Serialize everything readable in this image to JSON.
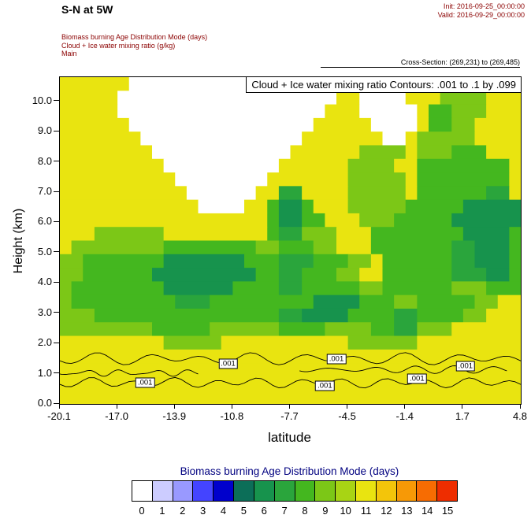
{
  "header": {
    "title": "S-N at 5W",
    "init_label": "Init: 2016-09-25_00:00:00",
    "valid_label": "Valid: 2016-09-29_00:00:00",
    "field_lines": [
      "Biomass burning Age Distribution Mode   (days)",
      "Cloud + Ice water mixing ratio   (g/kg)",
      "Main"
    ],
    "cross_section": "Cross-Section: (269,231) to (269,485)"
  },
  "chart_data": {
    "type": "heatmap",
    "title": "Cloud + Ice water mixing ratio Contours: .001 to .1 by .099",
    "xlabel": "latitude",
    "ylabel": "Height (km)",
    "x_ticks": [
      "-20.1",
      "-17.0",
      "-13.9",
      "-10.8",
      "-7.7",
      "-4.5",
      "-1.4",
      "1.7",
      "4.8"
    ],
    "y_ticks": [
      "0.0",
      "1.0",
      "2.0",
      "3.0",
      "4.0",
      "5.0",
      "6.0",
      "7.0",
      "8.0",
      "9.0",
      "10.0"
    ],
    "xlim": [
      -20.1,
      4.8
    ],
    "ylim": [
      0,
      10.8
    ],
    "grid": false,
    "palette": [
      "#ffffff",
      "#ccccff",
      "#9999ff",
      "#4444ff",
      "#0000cc",
      "#0c6e58",
      "#17934d",
      "#2aa53c",
      "#44b71f",
      "#7cc717",
      "#a8d414",
      "#e9e410",
      "#f3c50a",
      "#f79906",
      "#f76c02",
      "#ee2d00"
    ],
    "fill_field": {
      "name": "Biomass burning Age Distribution Mode",
      "units": "days",
      "levels": [
        0,
        1,
        2,
        3,
        4,
        5,
        6,
        7,
        8,
        9,
        10,
        11,
        12,
        13,
        14,
        15
      ],
      "ncols": 40,
      "nrows": 24,
      "grid_rle_rows": [
        [
          [
            6,
            11
          ],
          [
            18,
            0
          ],
          [
            9,
            11
          ],
          [
            3,
            9
          ],
          [
            4,
            11
          ]
        ],
        [
          [
            5,
            11
          ],
          [
            19,
            0
          ],
          [
            2,
            11
          ],
          [
            4,
            0
          ],
          [
            3,
            11
          ],
          [
            4,
            9
          ],
          [
            3,
            11
          ]
        ],
        [
          [
            5,
            11
          ],
          [
            18,
            0
          ],
          [
            3,
            11
          ],
          [
            5,
            0
          ],
          [
            1,
            11
          ],
          [
            2,
            8
          ],
          [
            3,
            9
          ],
          [
            3,
            11
          ]
        ],
        [
          [
            6,
            11
          ],
          [
            16,
            0
          ],
          [
            5,
            11
          ],
          [
            4,
            0
          ],
          [
            1,
            11
          ],
          [
            2,
            8
          ],
          [
            2,
            9
          ],
          [
            4,
            11
          ]
        ],
        [
          [
            7,
            11
          ],
          [
            14,
            0
          ],
          [
            7,
            11
          ],
          [
            2,
            0
          ],
          [
            1,
            11
          ],
          [
            5,
            9
          ],
          [
            4,
            11
          ]
        ],
        [
          [
            8,
            11
          ],
          [
            12,
            0
          ],
          [
            6,
            11
          ],
          [
            4,
            9
          ],
          [
            1,
            11
          ],
          [
            3,
            9
          ],
          [
            3,
            8
          ],
          [
            3,
            11
          ]
        ],
        [
          [
            9,
            11
          ],
          [
            10,
            0
          ],
          [
            6,
            11
          ],
          [
            4,
            9
          ],
          [
            2,
            11
          ],
          [
            8,
            8
          ],
          [
            1,
            11
          ]
        ],
        [
          [
            10,
            11
          ],
          [
            8,
            0
          ],
          [
            7,
            11
          ],
          [
            5,
            9
          ],
          [
            1,
            11
          ],
          [
            8,
            8
          ],
          [
            1,
            11
          ]
        ],
        [
          [
            11,
            11
          ],
          [
            6,
            0
          ],
          [
            2,
            11
          ],
          [
            2,
            7
          ],
          [
            4,
            11
          ],
          [
            5,
            9
          ],
          [
            1,
            11
          ],
          [
            6,
            8
          ],
          [
            2,
            7
          ],
          [
            1,
            11
          ]
        ],
        [
          [
            12,
            11
          ],
          [
            4,
            0
          ],
          [
            2,
            11
          ],
          [
            1,
            8
          ],
          [
            2,
            6
          ],
          [
            1,
            8
          ],
          [
            3,
            11
          ],
          [
            5,
            9
          ],
          [
            5,
            8
          ],
          [
            5,
            6
          ]
        ],
        [
          [
            18,
            11
          ],
          [
            1,
            8
          ],
          [
            2,
            6
          ],
          [
            2,
            8
          ],
          [
            3,
            11
          ],
          [
            3,
            9
          ],
          [
            5,
            8
          ],
          [
            6,
            6
          ]
        ],
        [
          [
            3,
            11
          ],
          [
            6,
            9
          ],
          [
            9,
            11
          ],
          [
            1,
            8
          ],
          [
            2,
            7
          ],
          [
            3,
            9
          ],
          [
            3,
            11
          ],
          [
            8,
            8
          ],
          [
            4,
            6
          ],
          [
            1,
            8
          ]
        ],
        [
          [
            1,
            11
          ],
          [
            8,
            9
          ],
          [
            8,
            8
          ],
          [
            2,
            9
          ],
          [
            3,
            8
          ],
          [
            2,
            9
          ],
          [
            3,
            11
          ],
          [
            7,
            8
          ],
          [
            2,
            7
          ],
          [
            3,
            6
          ],
          [
            1,
            8
          ]
        ],
        [
          [
            2,
            9
          ],
          [
            7,
            8
          ],
          [
            7,
            6
          ],
          [
            3,
            8
          ],
          [
            3,
            7
          ],
          [
            3,
            8
          ],
          [
            2,
            9
          ],
          [
            1,
            11
          ],
          [
            6,
            8
          ],
          [
            2,
            7
          ],
          [
            3,
            6
          ],
          [
            1,
            8
          ]
        ],
        [
          [
            2,
            9
          ],
          [
            6,
            8
          ],
          [
            9,
            6
          ],
          [
            2,
            8
          ],
          [
            2,
            7
          ],
          [
            3,
            8
          ],
          [
            2,
            9
          ],
          [
            2,
            11
          ],
          [
            6,
            8
          ],
          [
            3,
            7
          ],
          [
            2,
            6
          ],
          [
            1,
            8
          ]
        ],
        [
          [
            1,
            9
          ],
          [
            8,
            8
          ],
          [
            6,
            6
          ],
          [
            4,
            8
          ],
          [
            2,
            7
          ],
          [
            5,
            8
          ],
          [
            2,
            9
          ],
          [
            6,
            8
          ],
          [
            3,
            9
          ],
          [
            3,
            8
          ]
        ],
        [
          [
            1,
            9
          ],
          [
            9,
            8
          ],
          [
            3,
            7
          ],
          [
            9,
            8
          ],
          [
            4,
            6
          ],
          [
            3,
            8
          ],
          [
            2,
            9
          ],
          [
            5,
            8
          ],
          [
            2,
            9
          ],
          [
            2,
            11
          ]
        ],
        [
          [
            3,
            9
          ],
          [
            16,
            8
          ],
          [
            2,
            7
          ],
          [
            4,
            6
          ],
          [
            4,
            8
          ],
          [
            2,
            7
          ],
          [
            4,
            8
          ],
          [
            2,
            9
          ],
          [
            3,
            11
          ]
        ],
        [
          [
            8,
            9
          ],
          [
            5,
            8
          ],
          [
            6,
            9
          ],
          [
            4,
            8
          ],
          [
            4,
            9
          ],
          [
            2,
            8
          ],
          [
            2,
            7
          ],
          [
            3,
            9
          ],
          [
            6,
            11
          ]
        ],
        [
          [
            9,
            11
          ],
          [
            5,
            9
          ],
          [
            11,
            11
          ],
          [
            6,
            9
          ],
          [
            9,
            11
          ]
        ],
        [
          [
            40,
            11
          ]
        ],
        [
          [
            40,
            11
          ]
        ],
        [
          [
            40,
            11
          ]
        ],
        [
          [
            40,
            11
          ]
        ]
      ]
    },
    "contour_field": {
      "name": "Cloud + Ice water mixing ratio",
      "units": "g/kg",
      "levels_text": ".001 to .1 by .099",
      "label": ".001",
      "label_positions": [
        [
          0.185,
          0.935
        ],
        [
          0.365,
          0.878
        ],
        [
          0.575,
          0.945
        ],
        [
          0.6,
          0.862
        ],
        [
          0.775,
          0.922
        ],
        [
          0.88,
          0.885
        ]
      ],
      "lines": [
        {
          "x0": 0.0,
          "x1": 1.0,
          "y": 0.862,
          "amp": 0.013,
          "waves": 9
        },
        {
          "x0": 0.0,
          "x1": 1.0,
          "y": 0.935,
          "amp": 0.011,
          "waves": 11
        },
        {
          "x0": 0.52,
          "x1": 0.97,
          "y": 0.895,
          "amp": 0.008,
          "waves": 5
        },
        {
          "x0": 0.0,
          "x1": 0.3,
          "y": 0.905,
          "amp": 0.007,
          "waves": 4
        }
      ]
    },
    "legend": {
      "title": "Biomass burning Age Distribution Mode  (days)",
      "position": "bottom",
      "tick_labels": [
        "0",
        "1",
        "2",
        "3",
        "4",
        "5",
        "6",
        "7",
        "8",
        "9",
        "10",
        "11",
        "12",
        "13",
        "14",
        "15"
      ]
    }
  }
}
